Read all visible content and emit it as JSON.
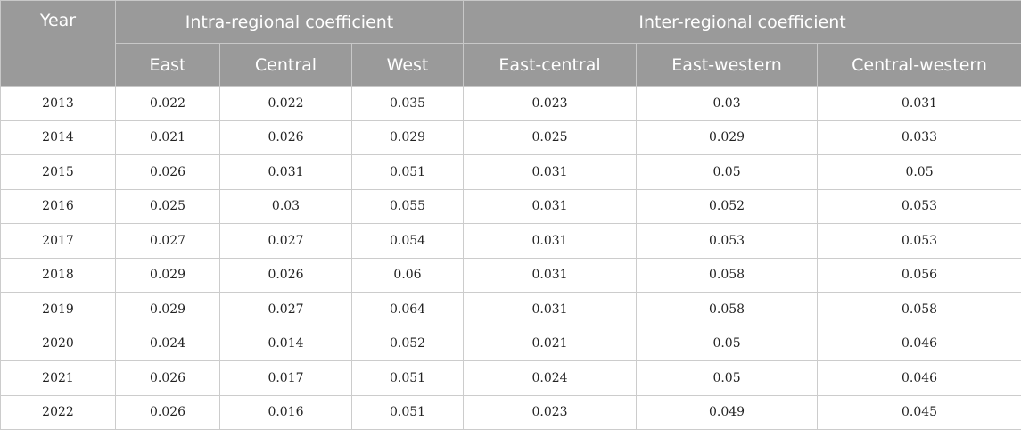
{
  "table": {
    "header": {
      "year": "Year",
      "intra_group": "Intra-regional coefficient",
      "inter_group": "Inter-regional coefficient",
      "columns": [
        "East",
        "Central",
        "West",
        "East-central",
        "East-western",
        "Central-western"
      ]
    },
    "rows": [
      [
        "2013",
        "0.022",
        "0.022",
        "0.035",
        "0.023",
        "0.03",
        "0.031"
      ],
      [
        "2014",
        "0.021",
        "0.026",
        "0.029",
        "0.025",
        "0.029",
        "0.033"
      ],
      [
        "2015",
        "0.026",
        "0.031",
        "0.051",
        "0.031",
        "0.05",
        "0.05"
      ],
      [
        "2016",
        "0.025",
        "0.03",
        "0.055",
        "0.031",
        "0.052",
        "0.053"
      ],
      [
        "2017",
        "0.027",
        "0.027",
        "0.054",
        "0.031",
        "0.053",
        "0.053"
      ],
      [
        "2018",
        "0.029",
        "0.026",
        "0.06",
        "0.031",
        "0.058",
        "0.056"
      ],
      [
        "2019",
        "0.029",
        "0.027",
        "0.064",
        "0.031",
        "0.058",
        "0.058"
      ],
      [
        "2020",
        "0.024",
        "0.014",
        "0.052",
        "0.021",
        "0.05",
        "0.046"
      ],
      [
        "2021",
        "0.026",
        "0.017",
        "0.051",
        "0.024",
        "0.05",
        "0.046"
      ],
      [
        "2022",
        "0.026",
        "0.016",
        "0.051",
        "0.023",
        "0.049",
        "0.045"
      ]
    ]
  },
  "colors": {
    "header_bg": "#9a9a9a",
    "header_text": "#ffffff",
    "border": "#cccccc"
  }
}
